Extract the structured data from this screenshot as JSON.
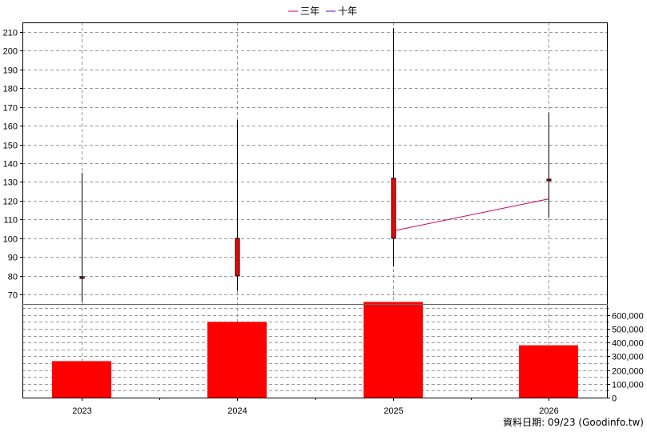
{
  "legend": [
    {
      "label": "三年",
      "color": "#cc0066"
    },
    {
      "label": "十年",
      "color": "#6600cc"
    }
  ],
  "footer": "資料日期: 09/23  (Goodinfo.tw)",
  "chart_data": {
    "type": "candlestick+bar",
    "categories": [
      "2023",
      "2024",
      "2025",
      "2026"
    ],
    "price": {
      "ylim": [
        65,
        215
      ],
      "ticks": [
        70,
        80,
        90,
        100,
        110,
        120,
        130,
        140,
        150,
        160,
        170,
        180,
        190,
        200,
        210
      ],
      "candles": [
        {
          "year": "2023",
          "open": 79,
          "close": 79.5,
          "high": 135,
          "low": 66
        },
        {
          "year": "2024",
          "open": 80,
          "close": 100,
          "high": 163,
          "low": 72
        },
        {
          "year": "2025",
          "open": 100,
          "close": 132,
          "high": 212,
          "low": 85
        },
        {
          "year": "2026",
          "open": 131,
          "close": 131.5,
          "high": 167,
          "low": 111
        }
      ],
      "lines": [
        {
          "name": "三年",
          "color": "#cc0066",
          "points": [
            {
              "x": "2025",
              "y": 104
            },
            {
              "x": "2026",
              "y": 121
            }
          ]
        }
      ]
    },
    "volume": {
      "ylim": [
        0,
        680000
      ],
      "ticks": [
        "0",
        "100,000",
        "200,000",
        "300,000",
        "400,000",
        "500,000",
        "600,000"
      ],
      "tick_values": [
        0,
        100000,
        200000,
        300000,
        400000,
        500000,
        600000
      ],
      "values": [
        265000,
        550000,
        695000,
        380000
      ],
      "color": "#ff0000"
    }
  }
}
